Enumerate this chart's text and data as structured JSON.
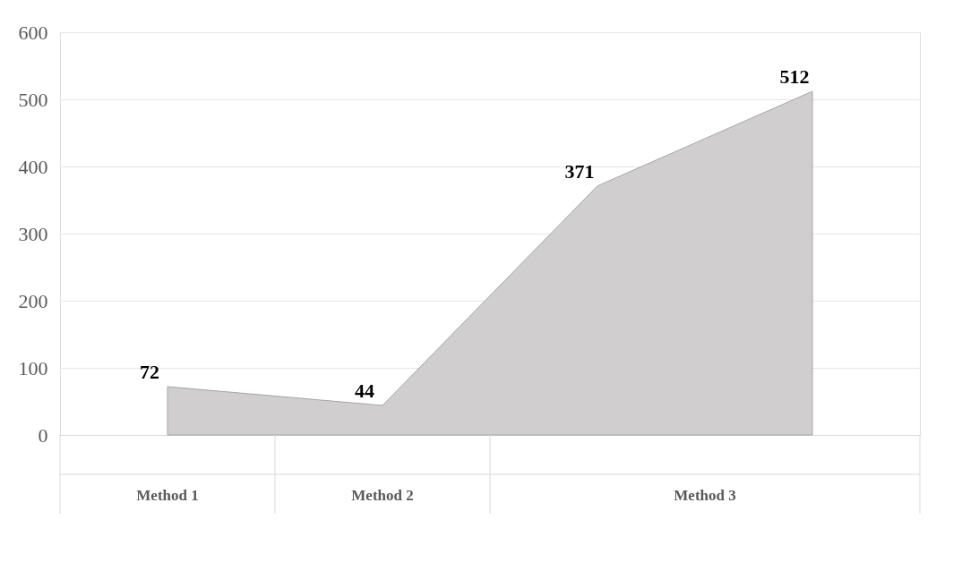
{
  "chart_data": {
    "type": "area",
    "categories": [
      "Method 1",
      "Method 2",
      null,
      null
    ],
    "values": [
      72,
      44,
      371,
      512
    ],
    "color": "#d0cece",
    "ylim": [
      0,
      600
    ],
    "yticks": [
      0,
      100,
      200,
      300,
      400,
      500,
      600
    ],
    "grid": "y",
    "data_labels": true,
    "annotations": [
      "Method 3"
    ]
  }
}
